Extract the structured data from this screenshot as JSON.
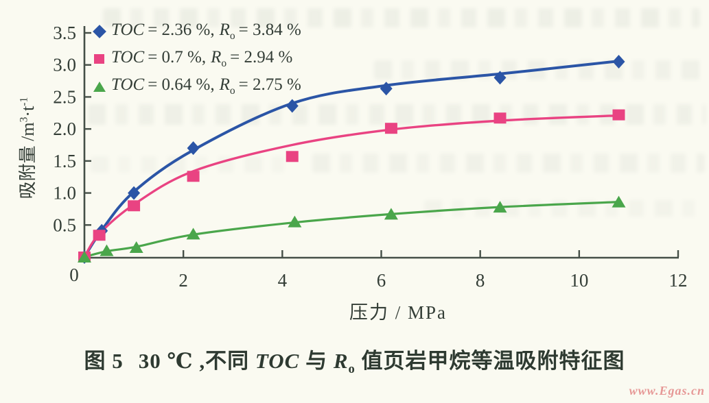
{
  "axes": {
    "x_label": "压力 / MPa",
    "y_label_pre": "吸附量 /m",
    "y_label_sup1": "3",
    "y_label_mid": "·t",
    "y_label_sup2": "-1"
  },
  "legend": {
    "items": [
      {
        "var1": "TOC",
        "val1": "= 2.36 %,",
        "var2": "R",
        "sub2": "o",
        "val2": "= 3.84 %",
        "marker": "diamond"
      },
      {
        "var1": "TOC",
        "val1": "= 0.7 %,",
        "var2": "R",
        "sub2": "o",
        "val2": "= 2.94 %",
        "marker": "square"
      },
      {
        "var1": "TOC",
        "val1": "= 0.64 %,",
        "var2": "R",
        "sub2": "o",
        "val2": "= 2.75 %",
        "marker": "triangle"
      }
    ]
  },
  "caption": {
    "fig_label": "图 5",
    "seg1": "30 ℃ ,不同 ",
    "var1": "TOC",
    "seg2": " 与 ",
    "var2": "R",
    "sub": "o",
    "seg3": " 值页岩甲烷等温吸附特征图"
  },
  "watermark": {
    "text": "www.Egas.cn",
    "color": "#e28080"
  },
  "chart_data": {
    "type": "scatter",
    "title": "30 ℃ 不同 TOC 与 Ro 值页岩甲烷等温吸附特征图",
    "xlabel": "压力 / MPa",
    "ylabel": "吸附量 /m³·t⁻¹",
    "xlim": [
      0,
      12
    ],
    "ylim": [
      0,
      3.5
    ],
    "x_ticks": [
      0,
      2,
      4,
      6,
      8,
      10,
      12
    ],
    "y_ticks": [
      0,
      0.5,
      1.0,
      1.5,
      2.0,
      2.5,
      3.0,
      3.5
    ],
    "grid": false,
    "legend_position": "top-left",
    "axis_color": "#454f47",
    "tick_text_color": "#333d36",
    "series": [
      {
        "name": "TOC=2.36 %, Ro=3.84 %",
        "marker": "diamond",
        "color": "#2b55a6",
        "line_width": 4,
        "points": [
          [
            0,
            0
          ],
          [
            0.35,
            0.41
          ],
          [
            1.0,
            1.0
          ],
          [
            2.2,
            1.7
          ],
          [
            4.2,
            2.36
          ],
          [
            6.1,
            2.63
          ],
          [
            8.4,
            2.8
          ],
          [
            10.8,
            3.05
          ]
        ],
        "curve": [
          [
            0,
            0
          ],
          [
            0.35,
            0.42
          ],
          [
            1.0,
            1.02
          ],
          [
            2.2,
            1.67
          ],
          [
            4.2,
            2.4
          ],
          [
            6.1,
            2.68
          ],
          [
            8.4,
            2.86
          ],
          [
            10.8,
            3.06
          ]
        ]
      },
      {
        "name": "TOC=0.7 %, Ro=2.94 %",
        "marker": "square",
        "color": "#e94382",
        "line_width": 3.4,
        "points": [
          [
            0,
            0
          ],
          [
            0.3,
            0.34
          ],
          [
            1.0,
            0.8
          ],
          [
            2.2,
            1.26
          ],
          [
            4.2,
            1.57
          ],
          [
            6.2,
            2.01
          ],
          [
            8.4,
            2.17
          ],
          [
            10.8,
            2.22
          ]
        ],
        "curve": [
          [
            0,
            0
          ],
          [
            0.3,
            0.36
          ],
          [
            1.0,
            0.82
          ],
          [
            2.2,
            1.34
          ],
          [
            4.2,
            1.75
          ],
          [
            6.2,
            1.99
          ],
          [
            8.4,
            2.13
          ],
          [
            10.8,
            2.21
          ]
        ]
      },
      {
        "name": "TOC=0.64 %, Ro=2.75 %",
        "marker": "triangle",
        "color": "#4aa64b",
        "line_width": 3.2,
        "points": [
          [
            0,
            0
          ],
          [
            0.45,
            0.1
          ],
          [
            1.05,
            0.15
          ],
          [
            2.2,
            0.36
          ],
          [
            4.25,
            0.55
          ],
          [
            6.2,
            0.67
          ],
          [
            8.4,
            0.78
          ],
          [
            10.8,
            0.86
          ]
        ],
        "curve": [
          [
            0,
            0
          ],
          [
            0.45,
            0.09
          ],
          [
            1.05,
            0.16
          ],
          [
            2.2,
            0.35
          ],
          [
            4.25,
            0.54
          ],
          [
            6.2,
            0.67
          ],
          [
            8.4,
            0.78
          ],
          [
            10.8,
            0.86
          ]
        ]
      }
    ]
  }
}
